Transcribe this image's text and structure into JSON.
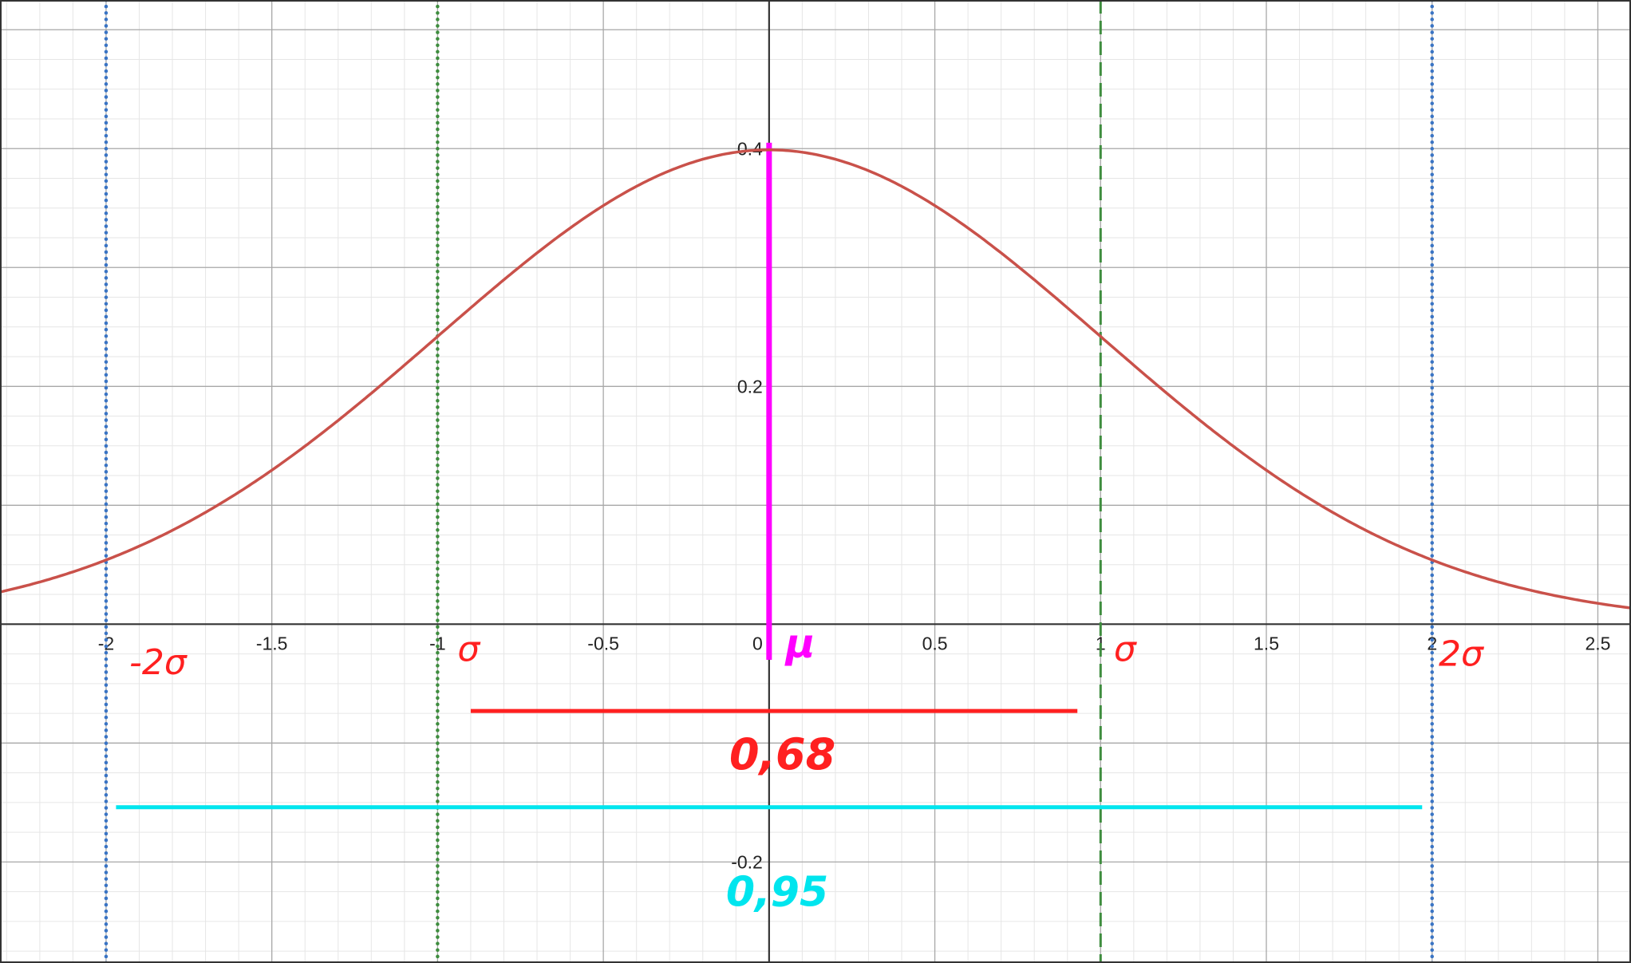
{
  "chart_data": {
    "type": "line",
    "title": "",
    "xlabel": "",
    "ylabel": "",
    "xlim": [
      -2.32,
      2.6
    ],
    "ylim": [
      -0.285,
      0.525
    ],
    "grid": true,
    "x_ticks": [
      "-2",
      "-1.5",
      "-1",
      "-0.5",
      "0",
      "0.5",
      "1",
      "1.5",
      "2",
      "2.5"
    ],
    "x_tick_values": [
      -2,
      -1.5,
      -1,
      -0.5,
      0,
      0.5,
      1,
      1.5,
      2,
      2.5
    ],
    "y_ticks": [
      "-0.2",
      "0.2",
      "0.4"
    ],
    "y_tick_values": [
      -0.2,
      0.2,
      0.4
    ],
    "series": [
      {
        "function": "standard normal density",
        "mean": 0,
        "sd": 1,
        "color": "#c9514a",
        "x": [
          -2.3,
          -2.0,
          -1.5,
          -1.0,
          -0.5,
          0.0,
          0.5,
          1.0,
          1.5,
          2.0,
          2.5
        ],
        "values": [
          0.0283,
          0.054,
          0.1295,
          0.242,
          0.3521,
          0.3989,
          0.3521,
          0.242,
          0.1295,
          0.054,
          0.0175
        ]
      }
    ],
    "vertical_lines": [
      {
        "x": -2,
        "style": "dotted",
        "color": "#3a74c4"
      },
      {
        "x": -1,
        "style": "dotted",
        "color": "#3e8d3e"
      },
      {
        "x": 1,
        "style": "dashed",
        "color": "#3e8d3e"
      },
      {
        "x": 2,
        "style": "dotted",
        "color": "#3a74c4"
      },
      {
        "x": 0,
        "y_from": -0.03,
        "y_to": 0.405,
        "style": "solid",
        "color": "#ff00ff"
      }
    ],
    "annotations": [
      {
        "text": "-2σ",
        "color": "#ff2020"
      },
      {
        "text": "σ",
        "color": "#ff2020"
      },
      {
        "text": "μ",
        "color": "#ff00ff"
      },
      {
        "text": "σ",
        "color": "#ff2020"
      },
      {
        "text": "2σ",
        "color": "#ff2020"
      },
      {
        "text": "0,68",
        "color": "#ff2020",
        "span": [
          -0.9,
          0.93
        ],
        "y": -0.073
      },
      {
        "text": "0,95",
        "color": "#00e5ee",
        "span": [
          -1.97,
          1.97
        ],
        "y": -0.154
      }
    ]
  }
}
